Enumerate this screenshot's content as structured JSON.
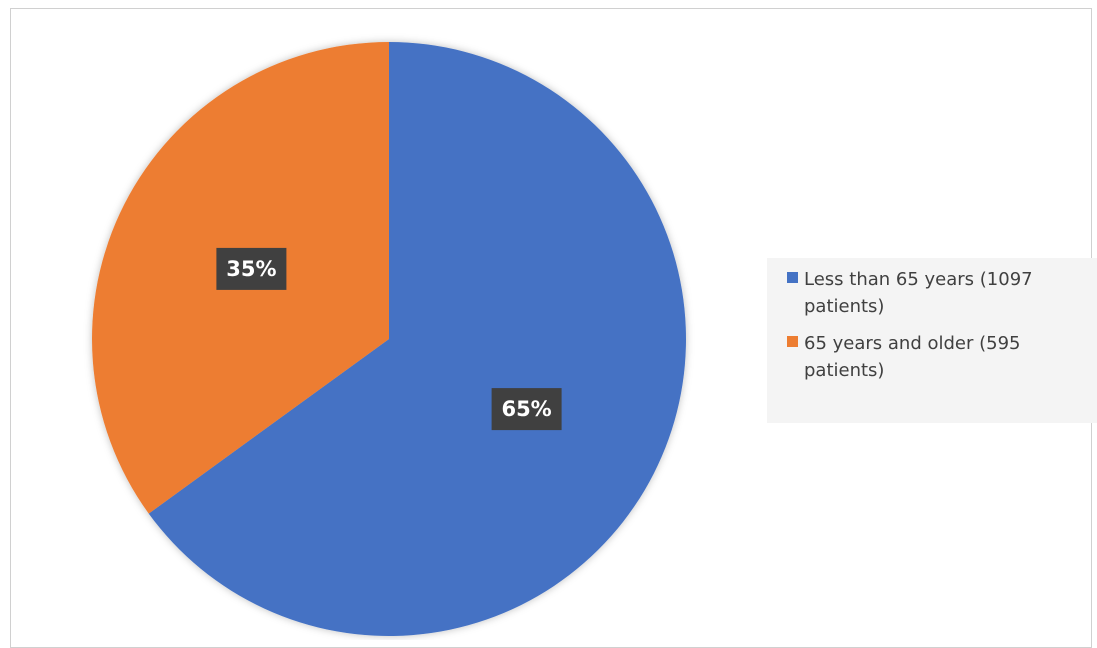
{
  "chart_data": {
    "type": "pie",
    "categories": [
      "Less than 65 years (1097 patients)",
      "65 years and older (595 patients)"
    ],
    "values": [
      65,
      35
    ],
    "data_labels": [
      "65%",
      "35%"
    ],
    "legend_position": "right",
    "colors": [
      "#4472c4",
      "#ed7d31"
    ]
  },
  "legend": {
    "items": [
      {
        "label": "Less than 65 years (1097 patients)",
        "color": "#4472c4"
      },
      {
        "label": "65 years and older (595 patients)",
        "color": "#ed7d31"
      }
    ]
  }
}
